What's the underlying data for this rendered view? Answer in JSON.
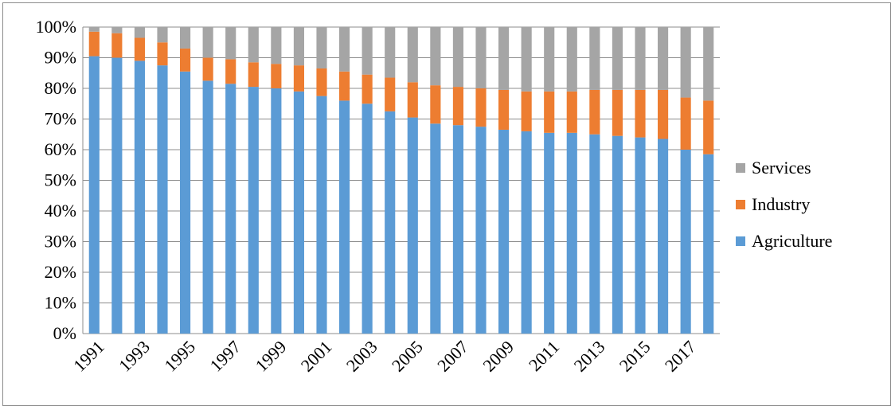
{
  "chart_data": {
    "type": "bar",
    "stacked": true,
    "percent_stacked": true,
    "categories": [
      "1991",
      "1992",
      "1993",
      "1994",
      "1995",
      "1996",
      "1997",
      "1998",
      "1999",
      "2000",
      "2001",
      "2002",
      "2003",
      "2004",
      "2005",
      "2006",
      "2007",
      "2008",
      "2009",
      "2010",
      "2011",
      "2012",
      "2013",
      "2014",
      "2015",
      "2016",
      "2017",
      "2018"
    ],
    "x_tick_labels": [
      "1991",
      "1993",
      "1995",
      "1997",
      "1999",
      "2001",
      "2003",
      "2005",
      "2007",
      "2009",
      "2011",
      "2013",
      "2015",
      "2017"
    ],
    "series": [
      {
        "name": "Agriculture",
        "color": "#5b9bd5",
        "values": [
          90.5,
          90,
          89,
          87.5,
          85.5,
          82.5,
          81.5,
          80.5,
          80,
          79,
          77.5,
          76,
          75,
          72.5,
          70.5,
          68.5,
          68,
          67.5,
          66.5,
          66,
          65.5,
          65.5,
          65,
          64.5,
          64,
          63.5,
          60,
          58.5
        ]
      },
      {
        "name": "Industry",
        "color": "#ed7d31",
        "values": [
          8,
          8,
          7.5,
          7.5,
          7.5,
          7.5,
          8,
          8,
          8,
          8.5,
          9,
          9.5,
          9.5,
          11,
          11.5,
          12.5,
          12.5,
          12.5,
          13,
          13,
          13.5,
          13.5,
          14.5,
          15,
          15.5,
          16,
          17,
          17.5
        ]
      },
      {
        "name": "Services",
        "color": "#a5a5a5",
        "values": [
          1.5,
          2,
          3.5,
          5,
          7,
          10,
          10.5,
          11.5,
          12,
          12.5,
          13.5,
          14.5,
          15.5,
          16.5,
          18,
          19,
          19.5,
          20,
          20.5,
          21,
          21,
          21,
          20.5,
          20.5,
          20.5,
          20.5,
          23,
          24
        ]
      }
    ],
    "ylim": [
      0,
      100
    ],
    "y_ticks": [
      "0%",
      "10%",
      "20%",
      "30%",
      "40%",
      "50%",
      "60%",
      "70%",
      "80%",
      "90%",
      "100%"
    ],
    "grid": true,
    "legend_position": "right",
    "legend_order": [
      "Services",
      "Industry",
      "Agriculture"
    ]
  }
}
